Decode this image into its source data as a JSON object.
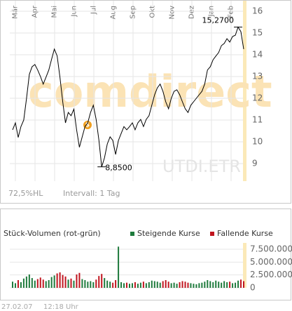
{
  "chart_data": [
    {
      "type": "line",
      "watermark": "comdirect",
      "symbol": "UTDI.ETR",
      "range_note": "72,5%HL",
      "interval": "Intervall: 1 Tag",
      "months": [
        "Mär",
        "Apr",
        "Mai",
        "Jun",
        "Jul",
        "Aug",
        "Sep",
        "Okt",
        "Nov",
        "Dez",
        "Jan",
        "Feb"
      ],
      "color": "#000000",
      "grid": true,
      "values": [
        10.55,
        10.87,
        10.2,
        10.7,
        11.0,
        12.0,
        13.1,
        13.45,
        13.55,
        13.3,
        13.0,
        12.65,
        12.97,
        13.3,
        13.8,
        14.26,
        13.95,
        12.97,
        11.84,
        10.87,
        11.35,
        11.2,
        11.5,
        10.55,
        9.75,
        10.23,
        10.7,
        10.87,
        11.35,
        11.68,
        11.03,
        10.06,
        8.85,
        9.26,
        9.9,
        10.23,
        10.06,
        9.42,
        10.06,
        10.39,
        10.7,
        10.55,
        10.7,
        10.87,
        10.55,
        10.87,
        11.03,
        10.7,
        11.03,
        11.2,
        11.68,
        12.16,
        12.48,
        12.65,
        12.32,
        11.84,
        11.52,
        12.0,
        12.32,
        12.39,
        12.16,
        11.84,
        11.52,
        11.35,
        11.68,
        11.84,
        12.0,
        12.16,
        12.32,
        12.65,
        13.3,
        13.45,
        13.77,
        13.94,
        14.1,
        14.42,
        14.52,
        14.74,
        14.58,
        14.84,
        14.9,
        15.27,
        15.06,
        14.26
      ],
      "value_labels": [
        null,
        null,
        null,
        null,
        null,
        null,
        null,
        null,
        null,
        null,
        null,
        null,
        null,
        null,
        null,
        null,
        null,
        null,
        null,
        null,
        null,
        null,
        null,
        null,
        null,
        null,
        null,
        null,
        null,
        null,
        null,
        null,
        "8,8500",
        null,
        null,
        null,
        null,
        null,
        null,
        null,
        null,
        null,
        null,
        null,
        null,
        null,
        null,
        null,
        null,
        null,
        null,
        null,
        null,
        null,
        null,
        null,
        null,
        null,
        null,
        null,
        null,
        null,
        null,
        null,
        null,
        null,
        null,
        null,
        null,
        null,
        null,
        null,
        null,
        null,
        null,
        null,
        null,
        null,
        null,
        null,
        null,
        "15,2700",
        null,
        null
      ],
      "ylim": [
        8.2,
        16
      ],
      "yticks": [
        9,
        10,
        11,
        12,
        13,
        14,
        15,
        16
      ]
    },
    {
      "type": "bar",
      "title": "Stück-Volumen (rot-grün)",
      "series": [
        {
          "name": "Steigende Kurse",
          "color": "#1e7a3c",
          "values": [
            1200000,
            900000,
            null,
            1100000,
            1800000,
            2200000,
            2600000,
            1900000,
            1400000,
            null,
            null,
            null,
            1300000,
            1500000,
            2100000,
            2400000,
            null,
            null,
            null,
            null,
            1600000,
            null,
            1400000,
            null,
            null,
            1700000,
            1500000,
            1200000,
            1300000,
            1100000,
            null,
            null,
            null,
            1900000,
            1400000,
            1200000,
            null,
            null,
            8000000,
            1100000,
            900000,
            null,
            800000,
            900000,
            null,
            800000,
            1000000,
            null,
            900000,
            1100000,
            1400000,
            1300000,
            1200000,
            1000000,
            null,
            null,
            null,
            900000,
            1000000,
            800000,
            null,
            null,
            null,
            null,
            900000,
            800000,
            700000,
            900000,
            1000000,
            1200000,
            1500000,
            1300000,
            1100000,
            1400000,
            1200000,
            1000000,
            1300000,
            1100000,
            null,
            900000,
            1000000,
            1400000,
            null,
            null
          ]
        },
        {
          "name": "Fallende Kurse",
          "color": "#c0141e",
          "values": [
            null,
            null,
            1500000,
            null,
            null,
            null,
            null,
            null,
            null,
            1700000,
            2000000,
            1600000,
            null,
            null,
            null,
            null,
            2800000,
            3000000,
            2500000,
            2200000,
            null,
            1800000,
            null,
            2600000,
            2900000,
            null,
            null,
            null,
            null,
            null,
            1600000,
            2300000,
            2700000,
            null,
            null,
            null,
            1000000,
            1500000,
            null,
            null,
            null,
            1000000,
            null,
            null,
            1100000,
            null,
            null,
            1200000,
            null,
            null,
            null,
            null,
            null,
            null,
            1300000,
            1500000,
            1200000,
            null,
            null,
            null,
            1100000,
            1300000,
            1200000,
            1000000,
            null,
            null,
            null,
            null,
            null,
            null,
            null,
            null,
            null,
            null,
            null,
            null,
            null,
            null,
            1200000,
            null,
            null,
            null,
            1600000,
            1300000
          ]
        }
      ],
      "ylim": [
        0,
        8000000
      ],
      "yticks": [
        0,
        {
          "value": 2500000,
          "label": "2.500.000"
        },
        {
          "value": 5000000,
          "label": "5.000.000"
        },
        {
          "value": 7500000,
          "label": "7.500.000"
        }
      ],
      "footer_date": "27.02.07",
      "footer_time": "12:18 Uhr"
    }
  ]
}
